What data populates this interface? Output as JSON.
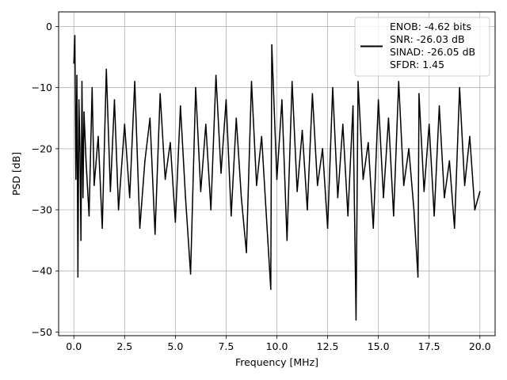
{
  "chart_data": {
    "type": "line",
    "title": "",
    "xlabel": "Frequency [MHz]",
    "ylabel": "PSD [dB]",
    "xlim": [
      -0.75,
      20.75
    ],
    "ylim": [
      -50.6,
      2.4
    ],
    "xticks": [
      0.0,
      2.5,
      5.0,
      7.5,
      10.0,
      12.5,
      15.0,
      17.5,
      20.0
    ],
    "xtick_labels": [
      "0.0",
      "2.5",
      "5.0",
      "7.5",
      "10.0",
      "12.5",
      "15.0",
      "17.5",
      "20.0"
    ],
    "yticks": [
      0,
      -10,
      -20,
      -30,
      -40,
      -50
    ],
    "ytick_labels": [
      "0",
      "−10",
      "−20",
      "−30",
      "−40",
      "−50"
    ],
    "grid": true,
    "legend_position": "top-right",
    "colors": {
      "line": "#000000",
      "grid": "#b0b0b0"
    },
    "series": [
      {
        "name": "ENOB: -4.62 bits\nSNR: -26.03 dB\nSINAD: -26.05 dB\nSFDR: 1.45",
        "legend_lines": [
          "ENOB: -4.62 bits",
          "SNR: -26.03 dB",
          "SINAD: -26.05 dB",
          "SFDR: 1.45"
        ],
        "x": [
          0.0,
          0.05,
          0.1,
          0.15,
          0.2,
          0.25,
          0.3,
          0.35,
          0.4,
          0.45,
          0.5,
          0.6,
          0.75,
          0.9,
          1.0,
          1.2,
          1.4,
          1.6,
          1.8,
          2.0,
          2.2,
          2.5,
          2.75,
          3.0,
          3.25,
          3.5,
          3.75,
          4.0,
          4.25,
          4.5,
          4.75,
          5.0,
          5.25,
          5.5,
          5.75,
          6.0,
          6.25,
          6.5,
          6.75,
          7.0,
          7.25,
          7.5,
          7.75,
          8.0,
          8.25,
          8.5,
          8.75,
          9.0,
          9.25,
          9.5,
          9.7,
          9.75,
          10.0,
          10.25,
          10.5,
          10.75,
          11.0,
          11.25,
          11.5,
          11.75,
          12.0,
          12.25,
          12.5,
          12.75,
          13.0,
          13.25,
          13.5,
          13.75,
          13.9,
          14.0,
          14.25,
          14.5,
          14.75,
          15.0,
          15.25,
          15.5,
          15.75,
          16.0,
          16.25,
          16.5,
          16.75,
          16.95,
          17.0,
          17.25,
          17.5,
          17.75,
          18.0,
          18.25,
          18.5,
          18.75,
          19.0,
          19.25,
          19.5,
          19.75,
          20.0
        ],
        "y": [
          -6,
          -1.5,
          -25,
          -8,
          -41,
          -12,
          -20,
          -35,
          -9,
          -28,
          -14,
          -22,
          -31,
          -10,
          -26,
          -18,
          -33,
          -7,
          -27,
          -12,
          -30,
          -16,
          -28,
          -9,
          -33,
          -22,
          -15,
          -34,
          -11,
          -25,
          -19,
          -32,
          -13,
          -28,
          -40.5,
          -10,
          -27,
          -16,
          -30,
          -8,
          -24,
          -12,
          -31,
          -15,
          -28,
          -37,
          -9,
          -26,
          -18,
          -32,
          -43,
          -3,
          -25,
          -12,
          -35,
          -9,
          -27,
          -17,
          -30,
          -11,
          -26,
          -20,
          -33,
          -10,
          -28,
          -16,
          -31,
          -13,
          -48,
          -9,
          -25,
          -19,
          -33,
          -12,
          -28,
          -15,
          -31,
          -9,
          -26,
          -20,
          -30,
          -41,
          -11,
          -27,
          -16,
          -31,
          -13,
          -28,
          -22,
          -33,
          -10,
          -26,
          -18,
          -30,
          -27
        ]
      }
    ]
  }
}
